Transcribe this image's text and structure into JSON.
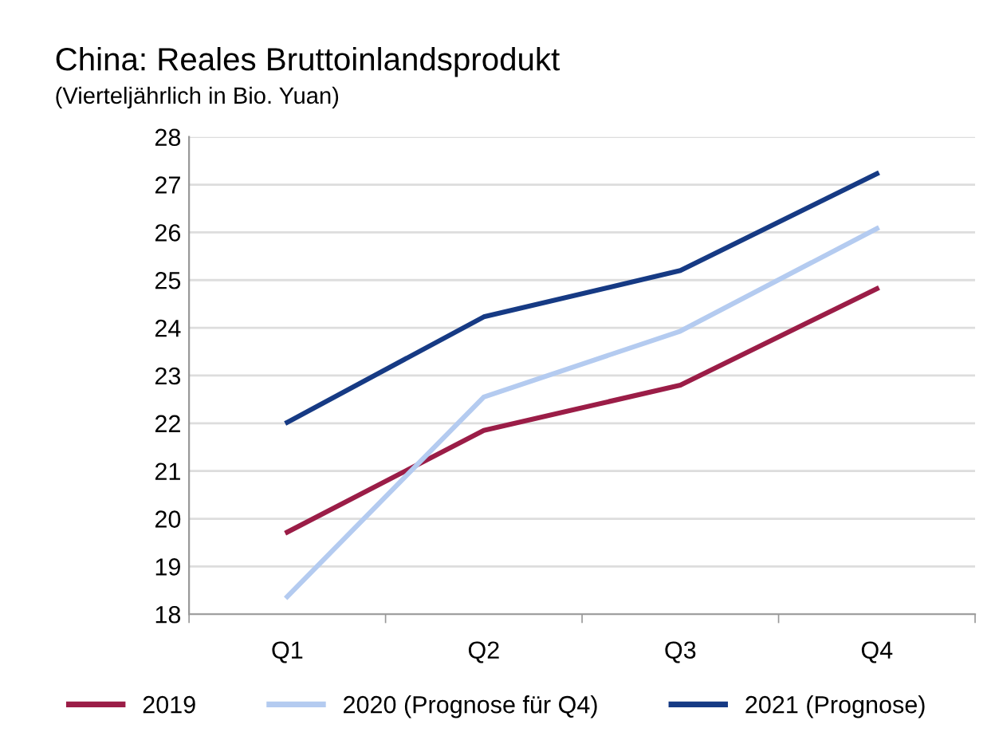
{
  "chart_data": {
    "type": "line",
    "title": "China: Reales Bruttoinlandsprodukt",
    "subtitle": "(Vierteljährlich in Bio. Yuan)",
    "categories": [
      "Q1",
      "Q2",
      "Q3",
      "Q4"
    ],
    "series": [
      {
        "name": "2019",
        "color": "#9b1d47",
        "values": [
          19.72,
          21.85,
          22.8,
          24.82
        ]
      },
      {
        "name": "2020 (Prognose für Q4)",
        "color": "#b4cbf0",
        "values": [
          18.37,
          22.55,
          23.93,
          26.08
        ]
      },
      {
        "name": "2021 (Prognose)",
        "color": "#163a84",
        "values": [
          22.02,
          24.23,
          25.2,
          27.23
        ]
      }
    ],
    "ylim": [
      18,
      28
    ],
    "yticks": [
      18,
      19,
      20,
      21,
      22,
      23,
      24,
      25,
      26,
      27,
      28
    ],
    "grid": "y",
    "legend": "bottom",
    "marker": "none",
    "line_style": "solid"
  }
}
